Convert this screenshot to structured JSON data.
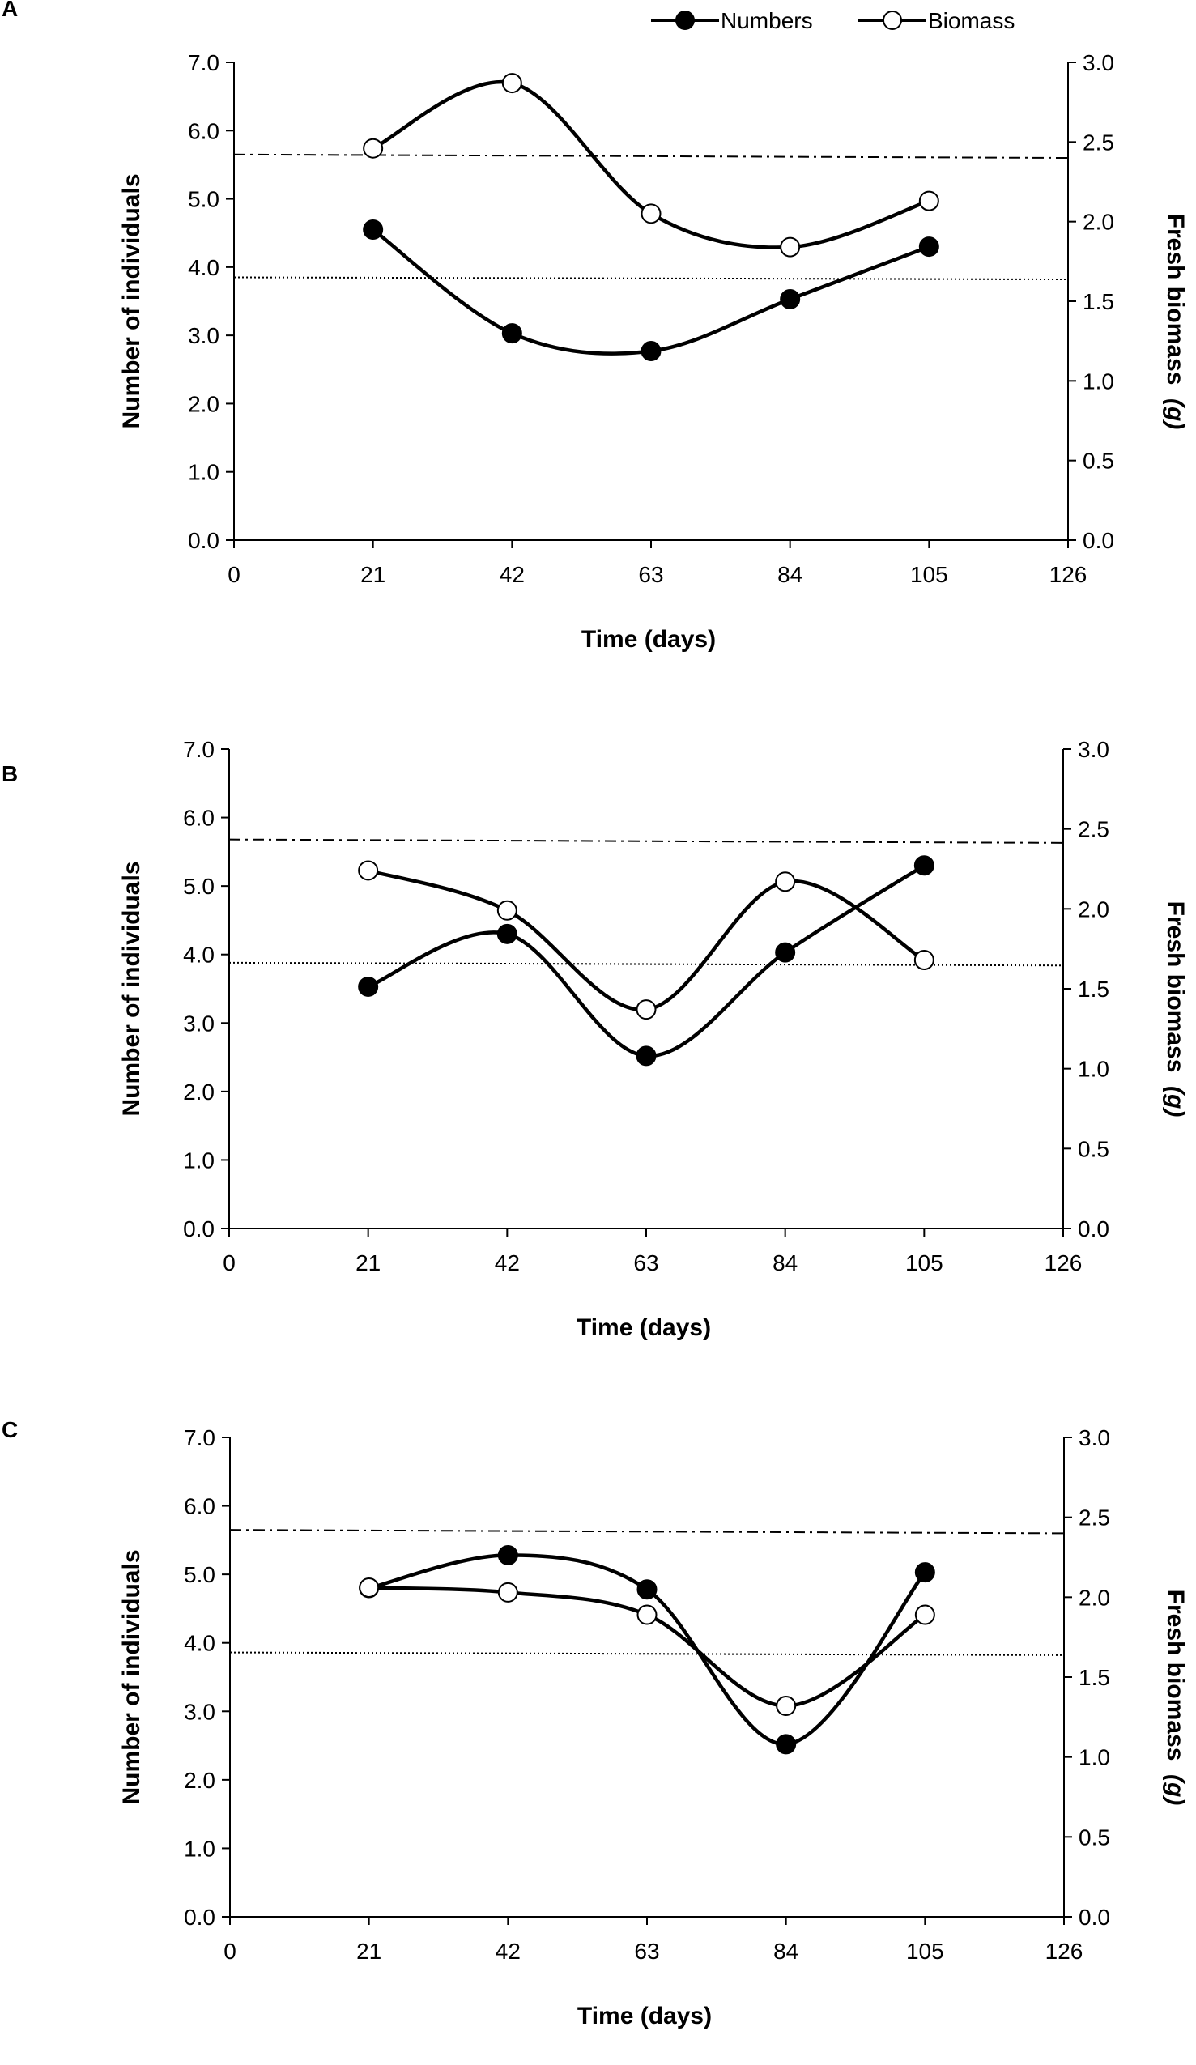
{
  "legend": {
    "numbers_label": "Numbers",
    "biomass_label": "Biomass"
  },
  "chart_data": [
    {
      "type": "line",
      "panel_label": "A",
      "xlabel": "Time (days)",
      "ylabel": "Number of individuals",
      "y2label_main": "Fresh biomass",
      "y2label_unit": "(g)",
      "x_ticks": [
        "0",
        "21",
        "42",
        "63",
        "84",
        "105",
        "126"
      ],
      "y_ticks": [
        "0.0",
        "1.0",
        "2.0",
        "3.0",
        "4.0",
        "5.0",
        "6.0",
        "7.0"
      ],
      "y2_ticks": [
        "0.0",
        "0.5",
        "1.0",
        "1.5",
        "2.0",
        "2.5",
        "3.0"
      ],
      "xlim": [
        0,
        126
      ],
      "ylim": [
        0,
        7
      ],
      "y2lim": [
        0,
        3
      ],
      "legend_position": "top-right",
      "x": [
        21,
        42,
        63,
        84,
        105
      ],
      "series": [
        {
          "name": "Numbers",
          "axis": "left",
          "marker": "filled-circle",
          "values": [
            4.55,
            3.03,
            2.77,
            3.53,
            4.3
          ]
        },
        {
          "name": "Biomass",
          "axis": "right",
          "marker": "open-circle",
          "values": [
            2.46,
            2.87,
            2.05,
            1.84,
            2.13
          ]
        }
      ],
      "reference_lines": [
        {
          "style": "dash-dot",
          "axis": "left",
          "from": 5.65,
          "to": 5.6
        },
        {
          "style": "dotted",
          "axis": "left",
          "from": 3.85,
          "to": 3.82
        }
      ]
    },
    {
      "type": "line",
      "panel_label": "B",
      "xlabel": "Time (days)",
      "ylabel": "Number of individuals",
      "y2label_main": "Fresh biomass",
      "y2label_unit": "(g)",
      "x_ticks": [
        "0",
        "21",
        "42",
        "63",
        "84",
        "105",
        "126"
      ],
      "y_ticks": [
        "0.0",
        "1.0",
        "2.0",
        "3.0",
        "4.0",
        "5.0",
        "6.0",
        "7.0"
      ],
      "y2_ticks": [
        "0.0",
        "0.5",
        "1.0",
        "1.5",
        "2.0",
        "2.5",
        "3.0"
      ],
      "xlim": [
        0,
        126
      ],
      "ylim": [
        0,
        7
      ],
      "y2lim": [
        0,
        3
      ],
      "x": [
        21,
        42,
        63,
        84,
        105
      ],
      "series": [
        {
          "name": "Numbers",
          "axis": "left",
          "marker": "filled-circle",
          "values": [
            3.53,
            4.3,
            2.52,
            4.03,
            5.3
          ]
        },
        {
          "name": "Biomass",
          "axis": "right",
          "marker": "open-circle",
          "values": [
            2.24,
            1.99,
            1.37,
            2.17,
            1.68
          ]
        }
      ],
      "reference_lines": [
        {
          "style": "dash-dot",
          "axis": "left",
          "from": 5.68,
          "to": 5.63
        },
        {
          "style": "dotted",
          "axis": "left",
          "from": 3.88,
          "to": 3.84
        }
      ]
    },
    {
      "type": "line",
      "panel_label": "C",
      "xlabel": "Time (days)",
      "ylabel": "Number of individuals",
      "y2label_main": "Fresh biomass",
      "y2label_unit": "(g)",
      "x_ticks": [
        "0",
        "21",
        "42",
        "63",
        "84",
        "105",
        "126"
      ],
      "y_ticks": [
        "0.0",
        "1.0",
        "2.0",
        "3.0",
        "4.0",
        "5.0",
        "6.0",
        "7.0"
      ],
      "y2_ticks": [
        "0.0",
        "0.5",
        "1.0",
        "1.5",
        "2.0",
        "2.5",
        "3.0"
      ],
      "xlim": [
        0,
        126
      ],
      "ylim": [
        0,
        7
      ],
      "y2lim": [
        0,
        3
      ],
      "x": [
        21,
        42,
        63,
        84,
        105
      ],
      "series": [
        {
          "name": "Numbers",
          "axis": "left",
          "marker": "filled-circle",
          "values": [
            4.8,
            5.28,
            4.78,
            2.52,
            5.03
          ]
        },
        {
          "name": "Biomass",
          "axis": "right",
          "marker": "open-circle",
          "values": [
            2.06,
            2.03,
            1.89,
            1.32,
            1.89
          ]
        }
      ],
      "reference_lines": [
        {
          "style": "dash-dot",
          "axis": "left",
          "from": 5.65,
          "to": 5.6
        },
        {
          "style": "dotted",
          "axis": "left",
          "from": 3.86,
          "to": 3.82
        }
      ]
    }
  ]
}
